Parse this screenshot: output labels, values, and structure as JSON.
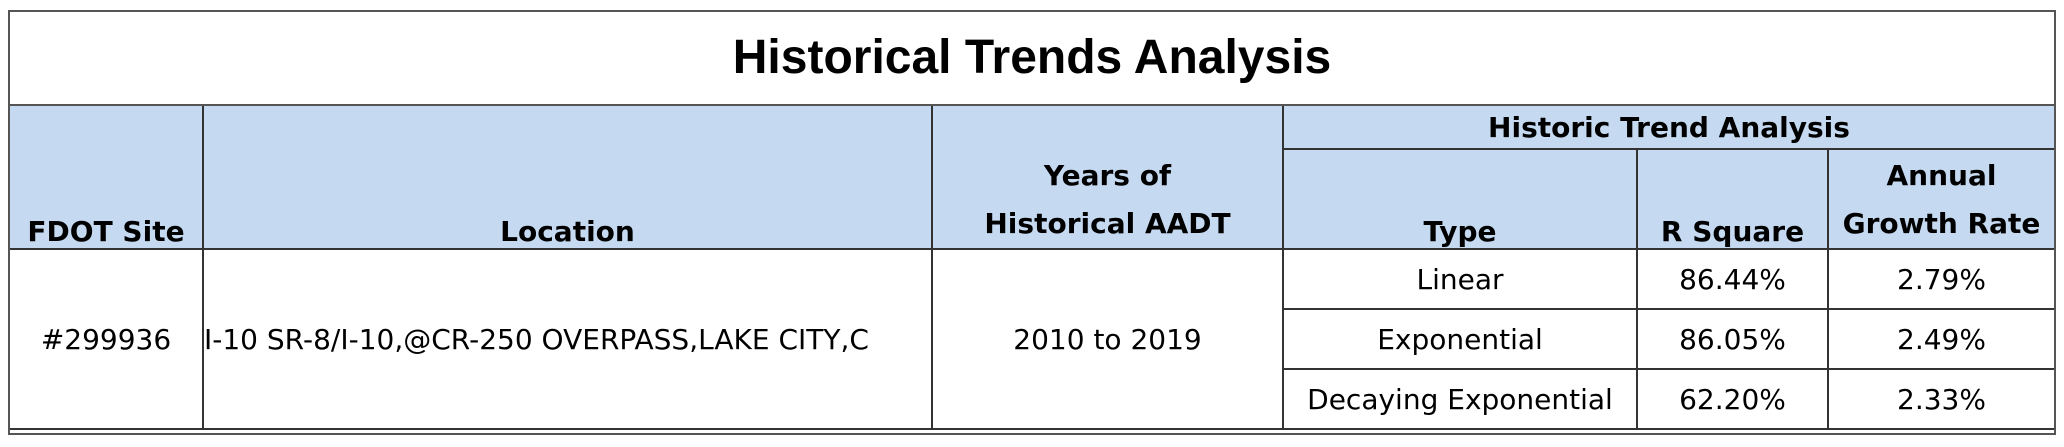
{
  "title": "Historical Trends Analysis",
  "headers": {
    "site": "FDOT Site",
    "location": "Location",
    "years_line1": "Years of",
    "years_line2": "Historical AADT",
    "group": "Historic Trend Analysis",
    "type": "Type",
    "r_square": "R Square",
    "growth_line1": "Annual",
    "growth_line2": "Growth Rate"
  },
  "record": {
    "site": "#299936",
    "location": "I-10 SR-8/I-10,@CR-250 OVERPASS,LAKE CITY,C",
    "years": "2010 to 2019"
  },
  "trends": [
    {
      "type": "Linear",
      "r_square": "86.44%",
      "growth": "2.79%"
    },
    {
      "type": "Exponential",
      "r_square": "86.05%",
      "growth": "2.49%"
    },
    {
      "type": "Decaying Exponential",
      "r_square": "62.20%",
      "growth": "2.33%"
    }
  ],
  "colors": {
    "header_fill": "#c5d9f1",
    "border": "#333333"
  }
}
